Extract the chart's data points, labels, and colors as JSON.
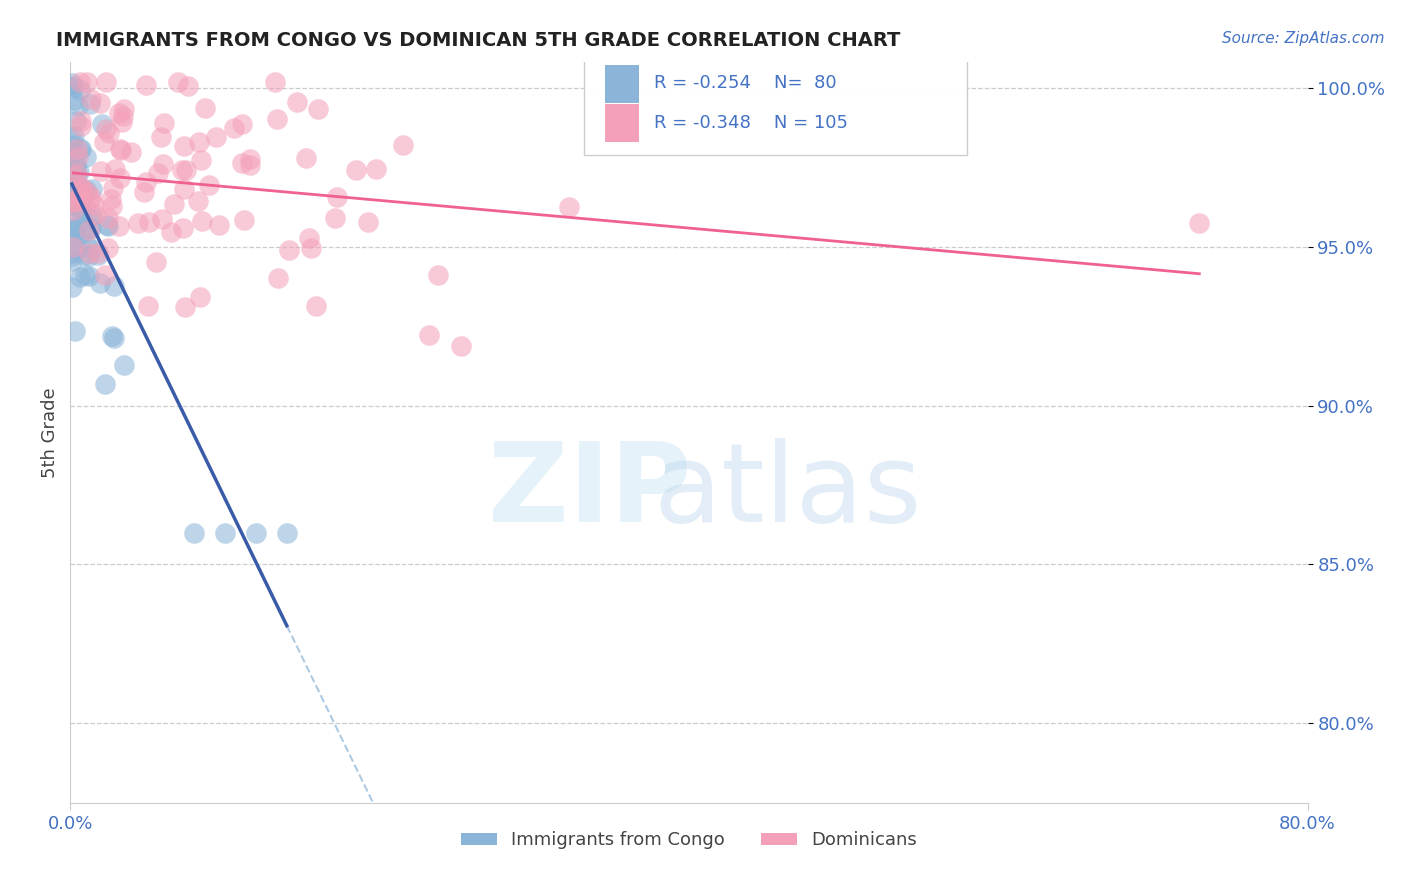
{
  "title": "IMMIGRANTS FROM CONGO VS DOMINICAN 5TH GRADE CORRELATION CHART",
  "source": "Source: ZipAtlas.com",
  "ylabel": "5th Grade",
  "y_tick_labels": [
    "100.0%",
    "95.0%",
    "90.0%",
    "85.0%",
    "80.0%"
  ],
  "y_tick_values": [
    1.0,
    0.95,
    0.9,
    0.85,
    0.8
  ],
  "x_min": 0.0,
  "x_max": 0.8,
  "y_min": 0.775,
  "y_max": 1.008,
  "congo_R": -0.254,
  "congo_N": 80,
  "dominican_R": -0.348,
  "dominican_N": 105,
  "congo_color": "#8ab4d8",
  "dominican_color": "#f4a0b8",
  "congo_line_color": "#3a5ca8",
  "dominican_line_color": "#f06090",
  "congo_dash_color": "#8ab4d8",
  "legend_labels": [
    "Immigrants from Congo",
    "Dominicans"
  ],
  "title_color": "#222222",
  "source_color": "#4472c4",
  "axis_label_color": "#444444",
  "tick_color": "#4472c4",
  "background_color": "#ffffff",
  "grid_color": "#cccccc",
  "watermark_zip_color": "#d0e8f5",
  "watermark_atlas_color": "#b8d4ec"
}
